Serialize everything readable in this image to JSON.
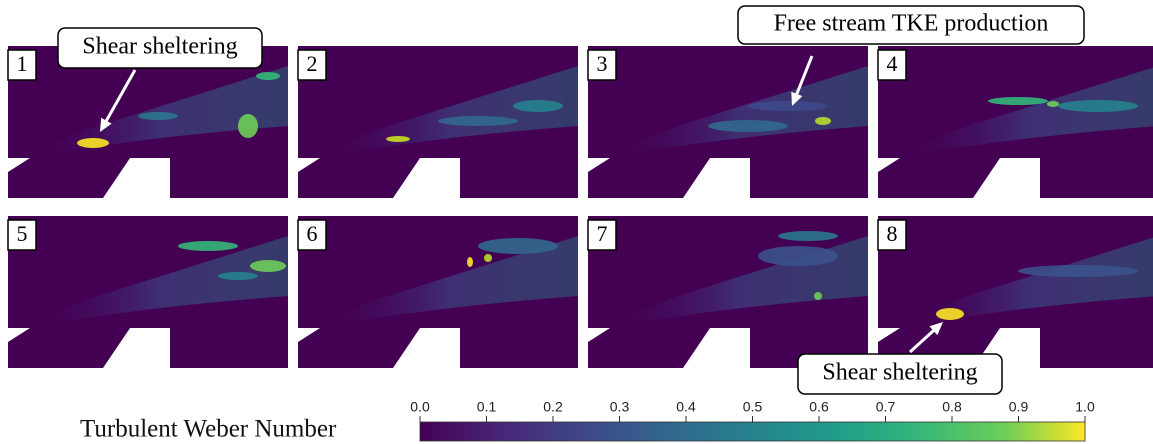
{
  "panels": [
    {
      "label": "1"
    },
    {
      "label": "2"
    },
    {
      "label": "3"
    },
    {
      "label": "4"
    },
    {
      "label": "5"
    },
    {
      "label": "6"
    },
    {
      "label": "7"
    },
    {
      "label": "8"
    }
  ],
  "annotations": [
    {
      "text": "Shear sheltering"
    },
    {
      "text": "Free stream TKE production"
    },
    {
      "text": "Shear sheltering"
    }
  ],
  "colorbar": {
    "label": "Turbulent Weber Number",
    "lim": [
      0,
      1
    ],
    "ticks": [
      {
        "value": 0,
        "label": "0.0"
      },
      0.1,
      0.2,
      0.3,
      0.4,
      0.5,
      0.6,
      0.7,
      0.8,
      0.9,
      {
        "value": 1,
        "label": "1.0"
      }
    ]
  }
}
